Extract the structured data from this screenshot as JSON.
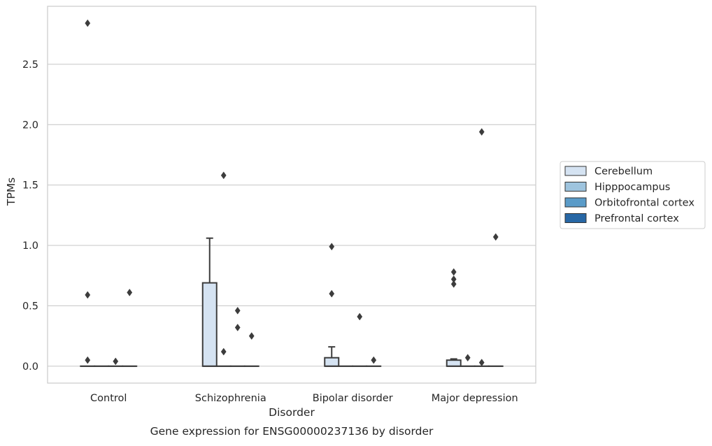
{
  "chart_data": {
    "type": "box",
    "title": "Gene expression for ENSG00000237136 by disorder",
    "xlabel": "Disorder",
    "ylabel": "TPMs",
    "categories": [
      "Control",
      "Schizophrenia",
      "Bipolar disorder",
      "Major depression"
    ],
    "ylim": [
      -0.14,
      2.98
    ],
    "yticks": [
      0.0,
      0.5,
      1.0,
      1.5,
      2.0,
      2.5
    ],
    "ytick_labels": [
      "0.0",
      "0.5",
      "1.0",
      "1.5",
      "2.0",
      "2.5"
    ],
    "grid": "horizontal",
    "legend_position": "right",
    "series": [
      {
        "name": "Cerebellum",
        "color": "#d5e3f2",
        "boxes": [
          {
            "q1": 0,
            "median": 0,
            "q3": 0,
            "whisker_low": 0,
            "whisker_high": 0,
            "outliers": [
              2.84,
              0.59,
              0.05
            ]
          },
          {
            "q1": 0,
            "median": 0,
            "q3": 0.69,
            "whisker_low": 0,
            "whisker_high": 1.06,
            "outliers": []
          },
          {
            "q1": 0,
            "median": 0,
            "q3": 0.07,
            "whisker_low": 0,
            "whisker_high": 0.16,
            "outliers": [
              0.99,
              0.6
            ]
          },
          {
            "q1": 0,
            "median": 0,
            "q3": 0.05,
            "whisker_low": 0,
            "whisker_high": 0.06,
            "outliers": [
              0.78,
              0.72,
              0.68
            ]
          }
        ]
      },
      {
        "name": "Hipppocampus",
        "color": "#9ec4de",
        "boxes": [
          {
            "q1": 0,
            "median": 0,
            "q3": 0,
            "whisker_low": 0,
            "whisker_high": 0,
            "outliers": []
          },
          {
            "q1": 0,
            "median": 0,
            "q3": 0,
            "whisker_low": 0,
            "whisker_high": 0,
            "outliers": [
              1.58,
              0.12
            ]
          },
          {
            "q1": 0,
            "median": 0,
            "q3": 0,
            "whisker_low": 0,
            "whisker_high": 0,
            "outliers": []
          },
          {
            "q1": 0,
            "median": 0,
            "q3": 0,
            "whisker_low": 0,
            "whisker_high": 0,
            "outliers": [
              0.07
            ]
          }
        ]
      },
      {
        "name": "Orbitofrontal cortex",
        "color": "#5a9bc8",
        "boxes": [
          {
            "q1": 0,
            "median": 0,
            "q3": 0,
            "whisker_low": 0,
            "whisker_high": 0,
            "outliers": [
              0.04
            ]
          },
          {
            "q1": 0,
            "median": 0,
            "q3": 0,
            "whisker_low": 0,
            "whisker_high": 0,
            "outliers": [
              0.46,
              0.32
            ]
          },
          {
            "q1": 0,
            "median": 0,
            "q3": 0,
            "whisker_low": 0,
            "whisker_high": 0,
            "outliers": [
              0.41
            ]
          },
          {
            "q1": 0,
            "median": 0,
            "q3": 0,
            "whisker_low": 0,
            "whisker_high": 0,
            "outliers": [
              1.94,
              0.03
            ]
          }
        ]
      },
      {
        "name": "Prefrontal cortex",
        "color": "#2767a5",
        "boxes": [
          {
            "q1": 0,
            "median": 0,
            "q3": 0,
            "whisker_low": 0,
            "whisker_high": 0,
            "outliers": [
              0.61
            ]
          },
          {
            "q1": 0,
            "median": 0,
            "q3": 0,
            "whisker_low": 0,
            "whisker_high": 0,
            "outliers": [
              0.25
            ]
          },
          {
            "q1": 0,
            "median": 0,
            "q3": 0,
            "whisker_low": 0,
            "whisker_high": 0,
            "outliers": [
              0.05
            ]
          },
          {
            "q1": 0,
            "median": 0,
            "q3": 0,
            "whisker_low": 0,
            "whisker_high": 0,
            "outliers": [
              1.07
            ]
          }
        ]
      }
    ]
  }
}
